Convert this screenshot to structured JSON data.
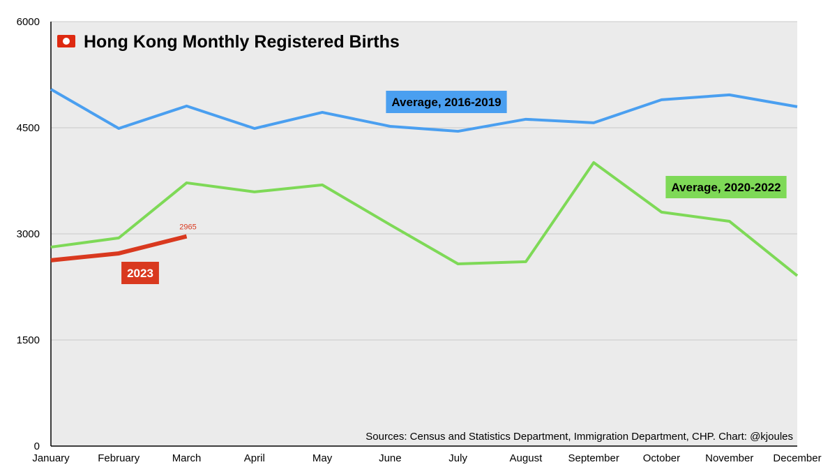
{
  "chart_data": {
    "type": "line",
    "title": "Hong Kong Monthly Registered Births",
    "source": "Sources: Census and Statistics Department, Immigration Department, CHP. Chart: @kjoules",
    "categories": [
      "January",
      "February",
      "March",
      "April",
      "May",
      "June",
      "July",
      "August",
      "September",
      "October",
      "November",
      "December"
    ],
    "series": [
      {
        "name": "Average, 2016-2019",
        "color": "#4a9ff0",
        "values": [
          5044,
          4490,
          4807,
          4490,
          4718,
          4520,
          4450,
          4620,
          4570,
          4896,
          4965,
          4797
        ]
      },
      {
        "name": "Average, 2020-2022",
        "color": "#7ed957",
        "values": [
          2813,
          2942,
          3721,
          3593,
          3692,
          3129,
          2576,
          2606,
          4008,
          3307,
          3178,
          2408
        ]
      },
      {
        "name": "2023",
        "color": "#d9391f",
        "values": [
          2626,
          2724,
          2965,
          null,
          null,
          null,
          null,
          null,
          null,
          null,
          null,
          null
        ]
      }
    ],
    "ylim": [
      0,
      6000
    ],
    "yticks": [
      0,
      1500,
      3000,
      4500,
      6000
    ],
    "grid": true
  }
}
